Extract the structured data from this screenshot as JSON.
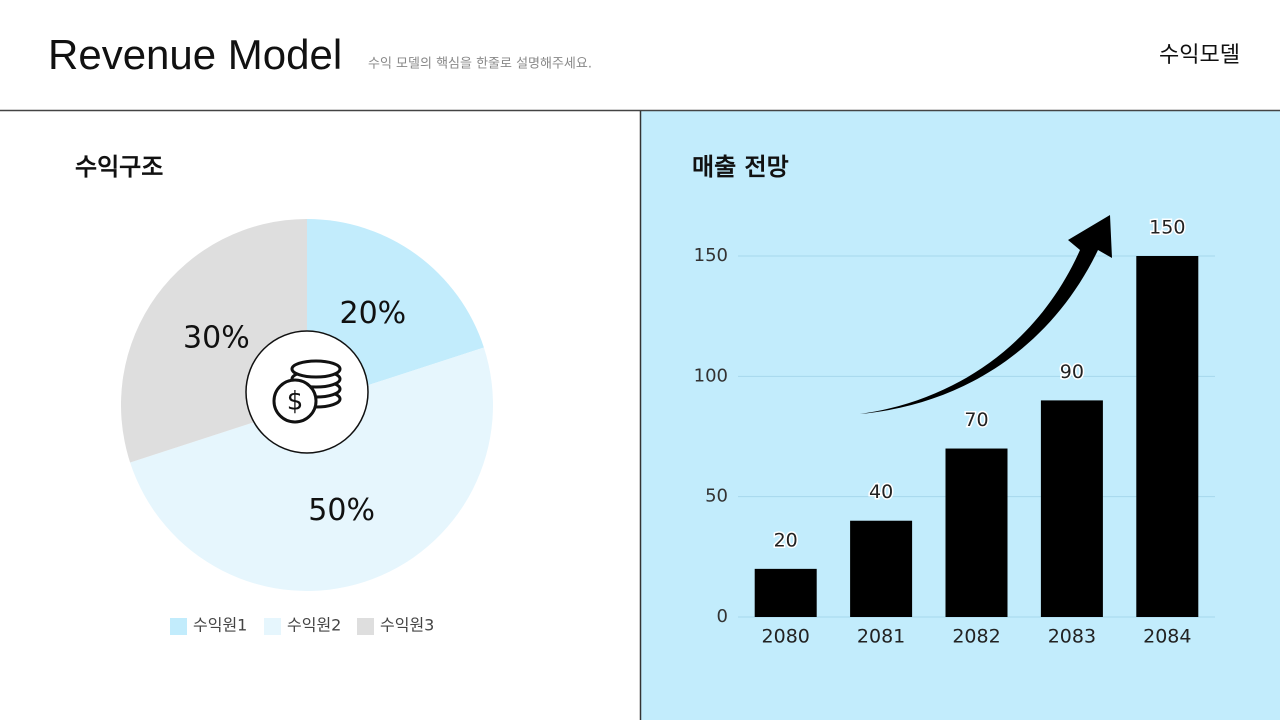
{
  "header": {
    "title": "Revenue Model",
    "subtitle": "수익 모델의 핵심을 한줄로 설명해주세요.",
    "tag": "수익모델"
  },
  "chart_data": [
    {
      "type": "pie",
      "title": "수익구조",
      "categories": [
        "수익원1",
        "수익원2",
        "수익원3"
      ],
      "values": [
        20,
        50,
        30
      ],
      "value_labels": [
        "20%",
        "50%",
        "30%"
      ],
      "colors": [
        "#c2ecfc",
        "#e6f6fd",
        "#dedede"
      ]
    },
    {
      "type": "bar",
      "title": "매출 전망",
      "categories": [
        "2080",
        "2081",
        "2082",
        "2083",
        "2084"
      ],
      "values": [
        20,
        40,
        70,
        90,
        150
      ],
      "color": "#000000",
      "ylim": [
        0,
        150
      ],
      "yticks": [
        0,
        50,
        100,
        150
      ],
      "grid": true
    }
  ]
}
